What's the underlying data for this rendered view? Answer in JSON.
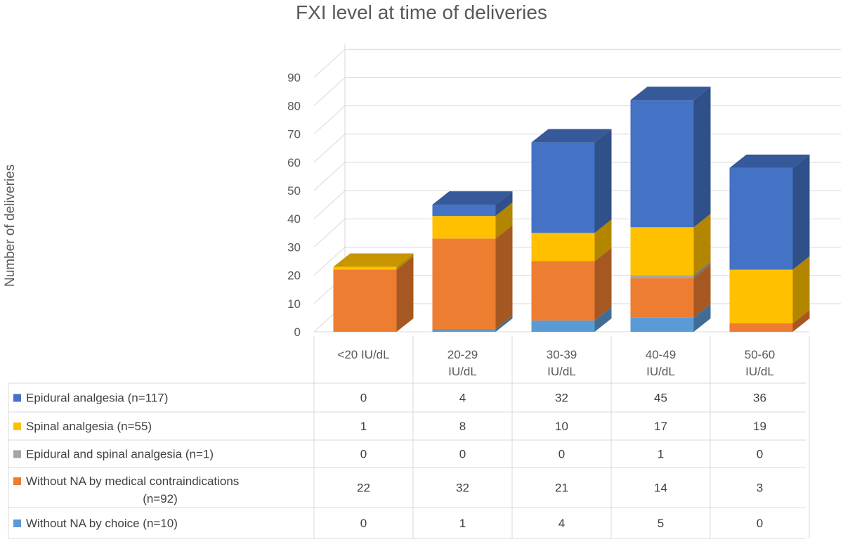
{
  "chart_data": {
    "type": "bar",
    "stacked": true,
    "three_d": true,
    "title": "FXI level at time of deliveries",
    "ylabel": "Number of deliveries",
    "xlabel": "",
    "ylim": [
      0,
      90
    ],
    "yticks": [
      0,
      10,
      20,
      30,
      40,
      50,
      60,
      70,
      80,
      90
    ],
    "categories": [
      [
        "<20 IU/dL"
      ],
      [
        "20-29",
        "IU/dL"
      ],
      [
        "30-39",
        "IU/dL"
      ],
      [
        "40-49",
        "IU/dL"
      ],
      [
        "50-60",
        "IU/dL"
      ]
    ],
    "grid": true,
    "legend": "data-table",
    "series": [
      {
        "name": "Epidural analgesia (n=117)",
        "color": "#4472C4",
        "values": [
          0,
          4,
          32,
          45,
          36
        ]
      },
      {
        "name": "Spinal analgesia (n=55)",
        "color": "#FFC000",
        "values": [
          1,
          8,
          10,
          17,
          19
        ]
      },
      {
        "name": "Epidural and spinal analgesia (n=1)",
        "color": "#A5A5A5",
        "values": [
          0,
          0,
          0,
          1,
          0
        ]
      },
      {
        "name": [
          "Without NA by medical contraindications",
          "(n=92)"
        ],
        "color": "#ED7D31",
        "values": [
          22,
          32,
          21,
          14,
          3
        ]
      },
      {
        "name": "Without NA by choice (n=10)",
        "color": "#5B9BD5",
        "values": [
          0,
          1,
          4,
          5,
          0
        ]
      }
    ],
    "stack_order_bottom_to_top": [
      4,
      3,
      2,
      1,
      0
    ]
  }
}
